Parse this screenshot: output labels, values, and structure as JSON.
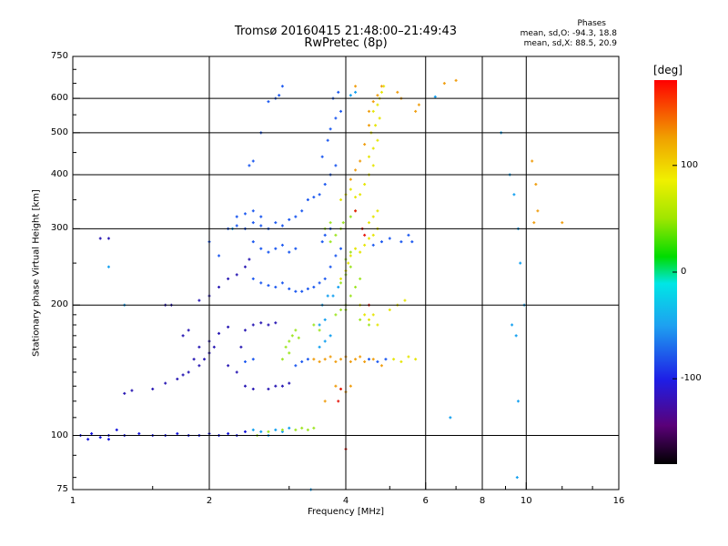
{
  "title": {
    "line1": "Tromsø 20160415 21:48:00–21:49:43",
    "line2": "RwPretec (8p)"
  },
  "stats": {
    "heading": "Phases",
    "o_line": "mean, sd,O: -94.3, 18.8",
    "x_line": "mean, sd,X:  88.5, 20.9"
  },
  "chart_data": {
    "type": "scatter",
    "title": "Tromsø 20160415 21:48:00–21:49:43",
    "subtitle": "RwPretec (8p)",
    "xlabel": "Frequency [MHz]",
    "ylabel": "Stationary phase Virtual Height [km]",
    "x_scale": "log",
    "y_scale": "log",
    "xlim": [
      1,
      16
    ],
    "ylim": [
      75,
      750
    ],
    "x_ticks": [
      1,
      2,
      4,
      6,
      8,
      10,
      16
    ],
    "x_tick_labels": [
      "1",
      "2",
      "4",
      "6",
      "8",
      "10",
      "16"
    ],
    "x_gridlines": [
      2,
      4,
      6,
      8,
      10
    ],
    "y_ticks": [
      75,
      100,
      200,
      300,
      400,
      500,
      600,
      750
    ],
    "y_tick_labels": [
      "75",
      "100",
      "200",
      "300",
      "400",
      "500",
      "600",
      "750"
    ],
    "y_gridlines": [
      100,
      200,
      300,
      400,
      500,
      600
    ],
    "grid": true,
    "color_variable": "phase",
    "colorbar": {
      "unit": "[deg]",
      "range": [
        -180,
        180
      ],
      "ticks": [
        100,
        0,
        -100
      ],
      "tick_labels": [
        "100",
        "0",
        "-100"
      ]
    },
    "series": [
      {
        "color": "#1616dc",
        "phase": -110,
        "points": [
          [
            1.04,
            100
          ],
          [
            1.08,
            98
          ],
          [
            1.1,
            101
          ],
          [
            1.15,
            99
          ],
          [
            1.2,
            100
          ],
          [
            1.3,
            100
          ],
          [
            1.4,
            101
          ],
          [
            1.5,
            100
          ],
          [
            1.6,
            100
          ],
          [
            1.7,
            101
          ],
          [
            1.8,
            100
          ],
          [
            1.9,
            100
          ],
          [
            2.0,
            101
          ],
          [
            2.1,
            100
          ],
          [
            2.2,
            101
          ],
          [
            2.3,
            100
          ],
          [
            2.4,
            102
          ],
          [
            1.2,
            98
          ],
          [
            1.25,
            103
          ]
        ]
      },
      {
        "color": "#2a1ab4",
        "phase": -125,
        "points": [
          [
            1.3,
            125
          ],
          [
            1.35,
            127
          ],
          [
            1.5,
            128
          ],
          [
            1.6,
            132
          ],
          [
            1.7,
            135
          ],
          [
            1.75,
            138
          ],
          [
            1.8,
            140
          ],
          [
            1.9,
            145
          ],
          [
            1.95,
            150
          ],
          [
            2.0,
            155
          ],
          [
            2.05,
            160
          ],
          [
            1.85,
            150
          ],
          [
            1.9,
            160
          ],
          [
            2.0,
            165
          ],
          [
            2.1,
            172
          ],
          [
            2.2,
            178
          ],
          [
            1.75,
            170
          ],
          [
            1.8,
            175
          ],
          [
            2.3,
            140
          ],
          [
            2.2,
            145
          ],
          [
            2.35,
            160
          ],
          [
            2.4,
            175
          ],
          [
            2.5,
            180
          ],
          [
            2.6,
            182
          ],
          [
            2.7,
            180
          ],
          [
            2.8,
            182
          ],
          [
            2.4,
            130
          ],
          [
            2.5,
            128
          ],
          [
            2.7,
            128
          ],
          [
            2.8,
            130
          ],
          [
            2.9,
            130
          ],
          [
            3.0,
            132
          ],
          [
            1.6,
            200
          ],
          [
            1.65,
            200
          ],
          [
            1.9,
            205
          ],
          [
            2.0,
            210
          ],
          [
            2.1,
            220
          ],
          [
            2.2,
            230
          ],
          [
            2.3,
            235
          ],
          [
            2.4,
            245
          ],
          [
            2.45,
            255
          ],
          [
            1.15,
            285
          ],
          [
            1.2,
            285
          ]
        ]
      },
      {
        "color": "#1e5af0",
        "phase": -95,
        "points": [
          [
            2.2,
            300
          ],
          [
            2.3,
            305
          ],
          [
            2.4,
            300
          ],
          [
            2.5,
            310
          ],
          [
            2.6,
            305
          ],
          [
            2.7,
            300
          ],
          [
            2.8,
            310
          ],
          [
            2.9,
            305
          ],
          [
            3.0,
            315
          ],
          [
            3.1,
            320
          ],
          [
            3.2,
            330
          ],
          [
            2.3,
            320
          ],
          [
            2.4,
            325
          ],
          [
            2.5,
            330
          ],
          [
            2.6,
            320
          ],
          [
            2.5,
            280
          ],
          [
            2.6,
            270
          ],
          [
            2.7,
            265
          ],
          [
            2.8,
            270
          ],
          [
            2.9,
            275
          ],
          [
            3.0,
            265
          ],
          [
            3.1,
            270
          ],
          [
            2.5,
            230
          ],
          [
            2.6,
            225
          ],
          [
            2.7,
            222
          ],
          [
            2.8,
            220
          ],
          [
            2.9,
            225
          ],
          [
            3.0,
            218
          ],
          [
            3.1,
            215
          ],
          [
            3.2,
            215
          ],
          [
            3.3,
            218
          ],
          [
            3.4,
            220
          ],
          [
            3.5,
            225
          ],
          [
            3.6,
            230
          ],
          [
            3.7,
            245
          ],
          [
            3.8,
            260
          ],
          [
            3.9,
            270
          ],
          [
            3.55,
            280
          ],
          [
            3.6,
            290
          ],
          [
            3.7,
            300
          ],
          [
            3.3,
            350
          ],
          [
            3.4,
            355
          ],
          [
            3.5,
            360
          ],
          [
            3.6,
            380
          ],
          [
            3.7,
            400
          ],
          [
            3.8,
            420
          ],
          [
            3.55,
            440
          ],
          [
            3.65,
            480
          ],
          [
            3.7,
            510
          ],
          [
            3.8,
            540
          ],
          [
            3.9,
            560
          ],
          [
            3.75,
            600
          ],
          [
            3.85,
            620
          ],
          [
            2.8,
            600
          ],
          [
            2.85,
            610
          ],
          [
            2.9,
            640
          ],
          [
            2.7,
            590
          ],
          [
            2.6,
            500
          ],
          [
            2.5,
            430
          ],
          [
            2.45,
            420
          ],
          [
            2.0,
            280
          ],
          [
            2.1,
            260
          ],
          [
            4.6,
            275
          ],
          [
            4.8,
            280
          ],
          [
            5.0,
            285
          ],
          [
            5.3,
            280
          ],
          [
            5.5,
            290
          ],
          [
            5.6,
            280
          ],
          [
            4.5,
            150
          ],
          [
            4.7,
            148
          ],
          [
            4.9,
            150
          ],
          [
            3.1,
            145
          ],
          [
            3.2,
            148
          ],
          [
            3.3,
            150
          ],
          [
            2.4,
            148
          ],
          [
            2.5,
            150
          ]
        ]
      },
      {
        "color": "#14a0f0",
        "phase": -60,
        "points": [
          [
            1.2,
            245
          ],
          [
            1.3,
            200
          ],
          [
            2.25,
            300
          ],
          [
            2.5,
            103
          ],
          [
            2.6,
            102
          ],
          [
            2.7,
            100
          ],
          [
            2.8,
            103
          ],
          [
            2.9,
            102
          ],
          [
            3.0,
            104
          ],
          [
            3.5,
            160
          ],
          [
            3.6,
            165
          ],
          [
            3.7,
            170
          ],
          [
            3.5,
            180
          ],
          [
            3.6,
            185
          ],
          [
            3.55,
            200
          ],
          [
            3.65,
            210
          ],
          [
            3.75,
            210
          ],
          [
            3.85,
            220
          ],
          [
            4.1,
            610
          ],
          [
            4.2,
            620
          ],
          [
            6.3,
            605
          ],
          [
            8.8,
            500
          ],
          [
            9.2,
            400
          ],
          [
            9.4,
            360
          ],
          [
            9.6,
            300
          ],
          [
            9.7,
            250
          ],
          [
            9.9,
            200
          ],
          [
            9.3,
            180
          ],
          [
            9.5,
            170
          ],
          [
            9.6,
            120
          ],
          [
            9.55,
            80
          ],
          [
            3.35,
            75
          ],
          [
            6.8,
            110
          ]
        ]
      },
      {
        "color": "#a0e628",
        "phase": 40,
        "points": [
          [
            2.55,
            100
          ],
          [
            2.7,
            102
          ],
          [
            2.9,
            103
          ],
          [
            3.1,
            103
          ],
          [
            3.2,
            104
          ],
          [
            3.3,
            103
          ],
          [
            3.4,
            104
          ],
          [
            2.95,
            160
          ],
          [
            3.0,
            165
          ],
          [
            3.05,
            170
          ],
          [
            3.1,
            175
          ],
          [
            3.15,
            168
          ],
          [
            2.9,
            150
          ],
          [
            3.0,
            155
          ],
          [
            3.4,
            180
          ],
          [
            3.5,
            175
          ],
          [
            3.8,
            190
          ],
          [
            3.9,
            195
          ],
          [
            4.0,
            200
          ],
          [
            4.1,
            210
          ],
          [
            4.2,
            220
          ],
          [
            4.3,
            230
          ],
          [
            3.9,
            225
          ],
          [
            4.0,
            235
          ],
          [
            4.1,
            245
          ],
          [
            4.0,
            255
          ],
          [
            4.1,
            265
          ],
          [
            3.7,
            280
          ],
          [
            3.8,
            290
          ],
          [
            3.9,
            300
          ],
          [
            3.95,
            310
          ],
          [
            4.1,
            320
          ],
          [
            4.2,
            330
          ],
          [
            3.6,
            300
          ],
          [
            3.7,
            310
          ],
          [
            4.0,
            195
          ],
          [
            4.3,
            185
          ],
          [
            4.5,
            180
          ]
        ]
      },
      {
        "color": "#e6e60a",
        "phase": 90,
        "points": [
          [
            3.9,
            350
          ],
          [
            4.0,
            360
          ],
          [
            4.1,
            370
          ],
          [
            4.2,
            355
          ],
          [
            4.3,
            360
          ],
          [
            4.4,
            380
          ],
          [
            4.5,
            400
          ],
          [
            4.6,
            420
          ],
          [
            4.5,
            440
          ],
          [
            4.6,
            460
          ],
          [
            4.7,
            480
          ],
          [
            4.55,
            500
          ],
          [
            4.65,
            520
          ],
          [
            4.75,
            540
          ],
          [
            4.6,
            560
          ],
          [
            4.7,
            580
          ],
          [
            4.75,
            600
          ],
          [
            4.8,
            620
          ],
          [
            4.85,
            640
          ],
          [
            3.9,
            230
          ],
          [
            4.0,
            240
          ],
          [
            4.05,
            250
          ],
          [
            4.1,
            260
          ],
          [
            4.2,
            270
          ],
          [
            4.3,
            265
          ],
          [
            4.4,
            275
          ],
          [
            4.5,
            285
          ],
          [
            4.6,
            290
          ],
          [
            4.7,
            300
          ],
          [
            4.5,
            310
          ],
          [
            4.6,
            320
          ],
          [
            4.7,
            330
          ],
          [
            4.3,
            200
          ],
          [
            4.4,
            190
          ],
          [
            4.5,
            185
          ],
          [
            4.6,
            190
          ],
          [
            4.7,
            180
          ],
          [
            5.0,
            195
          ],
          [
            5.2,
            200
          ],
          [
            5.4,
            205
          ],
          [
            5.1,
            150
          ],
          [
            5.3,
            148
          ],
          [
            5.5,
            152
          ],
          [
            5.7,
            150
          ]
        ]
      },
      {
        "color": "#f0a014",
        "phase": 130,
        "points": [
          [
            3.4,
            150
          ],
          [
            3.5,
            148
          ],
          [
            3.6,
            150
          ],
          [
            3.7,
            152
          ],
          [
            3.8,
            148
          ],
          [
            3.9,
            150
          ],
          [
            4.0,
            152
          ],
          [
            4.1,
            148
          ],
          [
            4.2,
            150
          ],
          [
            4.3,
            152
          ],
          [
            4.4,
            148
          ],
          [
            4.6,
            150
          ],
          [
            4.8,
            145
          ],
          [
            3.8,
            130
          ],
          [
            3.9,
            128
          ],
          [
            4.0,
            126
          ],
          [
            4.1,
            130
          ],
          [
            4.5,
            560
          ],
          [
            4.6,
            590
          ],
          [
            4.7,
            610
          ],
          [
            4.5,
            520
          ],
          [
            4.4,
            470
          ],
          [
            4.3,
            430
          ],
          [
            4.2,
            410
          ],
          [
            4.1,
            390
          ],
          [
            4.8,
            640
          ],
          [
            5.7,
            560
          ],
          [
            5.8,
            580
          ],
          [
            5.2,
            620
          ],
          [
            5.3,
            600
          ],
          [
            6.6,
            650
          ],
          [
            7.0,
            660
          ],
          [
            10.3,
            430
          ],
          [
            10.5,
            380
          ],
          [
            10.6,
            330
          ],
          [
            10.4,
            310
          ],
          [
            12.0,
            310
          ],
          [
            4.2,
            640
          ],
          [
            3.6,
            120
          ]
        ]
      },
      {
        "color": "#e61e14",
        "phase": 170,
        "points": [
          [
            3.85,
            120
          ],
          [
            3.9,
            128
          ],
          [
            4.0,
            93
          ],
          [
            4.35,
            300
          ],
          [
            4.4,
            290
          ],
          [
            4.2,
            330
          ],
          [
            4.5,
            200
          ]
        ]
      }
    ]
  }
}
